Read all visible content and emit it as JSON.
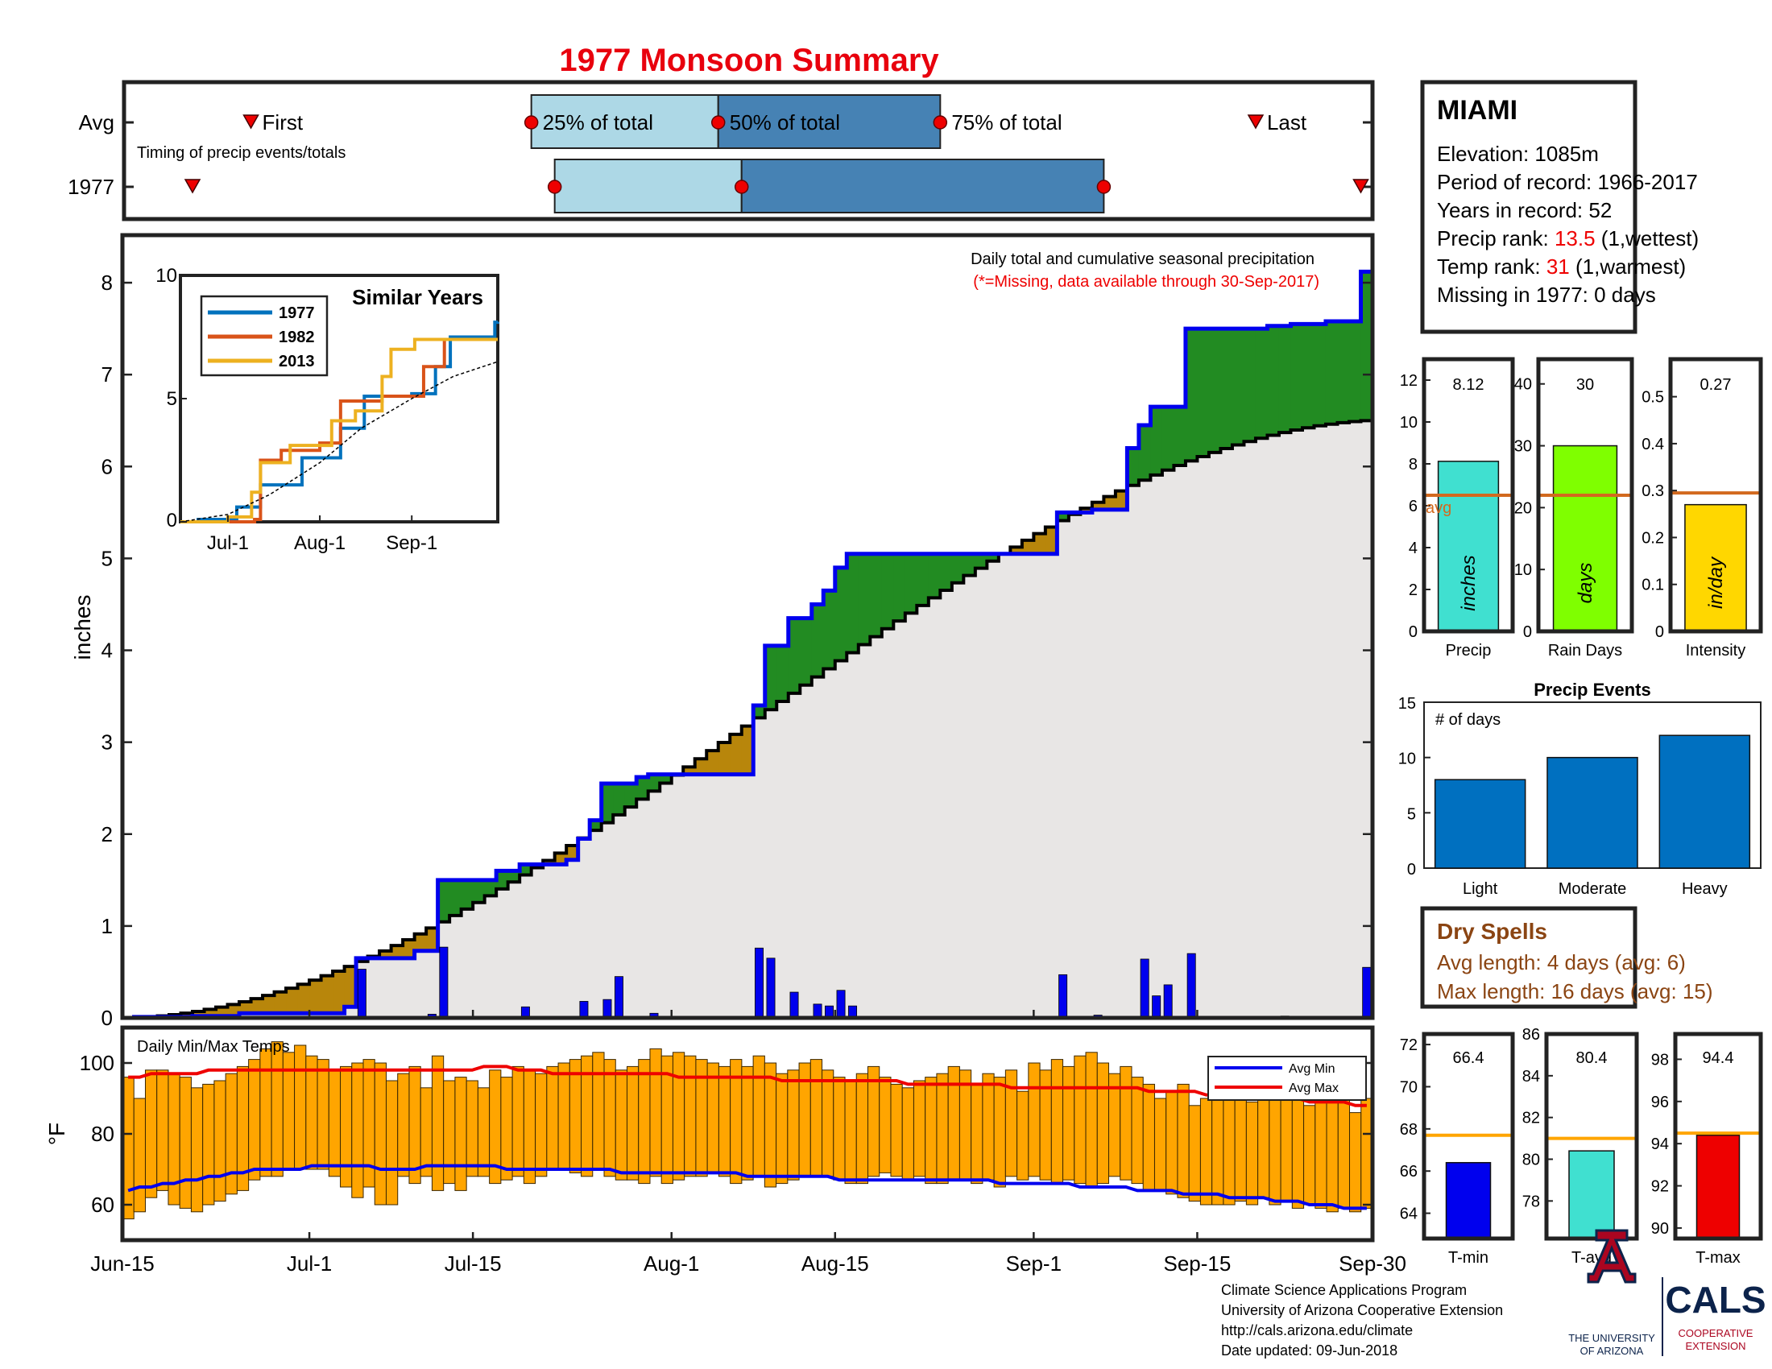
{
  "title": "1977 Monsoon Summary",
  "colors": {
    "title": "#e8000d",
    "cum_fill": "#e8e6e5",
    "above": "#228b22",
    "below": "#b8860b",
    "cum_line": "#0000ee",
    "avg_line": "#000000",
    "daily_bar": "#0000ee",
    "timing_light": "#add8e6",
    "timing_dark": "#4682b4",
    "temp_bar": "#ffa500",
    "avg_min": "#0000ee",
    "avg_max": "#ee0000",
    "precip_bar": "#40e0d0",
    "days_bar": "#7fff00",
    "intensity_bar": "#ffd700",
    "avg_ref": "#d2691e",
    "events_bar": "#0070c0",
    "dry": "#8b4513",
    "tmin_bar": "#0000ee",
    "tavg_bar": "#40e0d0",
    "tmax_bar": "#ee0000",
    "temp_ref": "#ffa500",
    "ua_red": "#ab0520",
    "ua_blue": "#0c234b"
  },
  "timing": {
    "row_labels": [
      "Avg",
      "1977"
    ],
    "subtitle": "Timing of precip events/totals",
    "avg": {
      "first": "Jun-26",
      "p25": "Jul-20",
      "p50": "Aug-5",
      "p75": "Aug-24",
      "last": "Sep-20"
    },
    "year": {
      "first": "Jun-21",
      "p25": "Jul-22",
      "p50": "Aug-7",
      "p75": "Sep-7",
      "last": "Sep-29"
    },
    "labels": {
      "first": "First",
      "p25": "25% of total",
      "p50": "50% of total",
      "p75": "75% of total",
      "last": "Last"
    }
  },
  "chart_data": [
    {
      "type": "area",
      "title": "Daily total and cumulative seasonal precipitation",
      "note": "(*=Missing, data available through 30-Sep-2017)",
      "ylabel": "inches",
      "ylim": [
        0,
        8.5
      ],
      "yticks": [
        0,
        1,
        2,
        3,
        4,
        5,
        6,
        7,
        8
      ],
      "xlim": [
        "Jun-15",
        "Sep-30"
      ],
      "xtick_labels": [
        "Jun-15",
        "Jul-1",
        "Jul-15",
        "Aug-1",
        "Aug-15",
        "Sep-1",
        "Sep-15",
        "Sep-30"
      ],
      "cumulative_1977": [
        [
          "Jun-16",
          0.01
        ],
        [
          "Jun-21",
          0.02
        ],
        [
          "Jun-25",
          0.05
        ],
        [
          "Jul-4",
          0.12
        ],
        [
          "Jul-5",
          0.65
        ],
        [
          "Jul-10",
          0.73
        ],
        [
          "Jul-12",
          1.5
        ],
        [
          "Jul-17",
          1.6
        ],
        [
          "Jul-19",
          1.67
        ],
        [
          "Jul-23",
          1.72
        ],
        [
          "Jul-24",
          1.95
        ],
        [
          "Jul-25",
          2.15
        ],
        [
          "Jul-26",
          2.55
        ],
        [
          "Jul-29",
          2.62
        ],
        [
          "Jul-30",
          2.65
        ],
        [
          "Aug-8",
          3.4
        ],
        [
          "Aug-9",
          4.05
        ],
        [
          "Aug-11",
          4.35
        ],
        [
          "Aug-13",
          4.5
        ],
        [
          "Aug-14",
          4.65
        ],
        [
          "Aug-15",
          4.9
        ],
        [
          "Aug-16",
          5.05
        ],
        [
          "Sep-3",
          5.5
        ],
        [
          "Sep-6",
          5.53
        ],
        [
          "Sep-9",
          6.2
        ],
        [
          "Sep-10",
          6.45
        ],
        [
          "Sep-11",
          6.65
        ],
        [
          "Sep-14",
          7.5
        ],
        [
          "Sep-21",
          7.53
        ],
        [
          "Sep-23",
          7.55
        ],
        [
          "Sep-26",
          7.58
        ],
        [
          "Sep-29",
          8.12
        ]
      ],
      "cumulative_avg_end": 6.5,
      "daily_1977": [
        [
          "Jul-5",
          0.53
        ],
        [
          "Jul-11",
          0.04
        ],
        [
          "Jul-12",
          0.77
        ],
        [
          "Jul-19",
          0.12
        ],
        [
          "Jul-24",
          0.18
        ],
        [
          "Jul-26",
          0.2
        ],
        [
          "Jul-27",
          0.45
        ],
        [
          "Jul-30",
          0.05
        ],
        [
          "Aug-8",
          0.76
        ],
        [
          "Aug-9",
          0.65
        ],
        [
          "Aug-11",
          0.28
        ],
        [
          "Aug-13",
          0.15
        ],
        [
          "Aug-14",
          0.13
        ],
        [
          "Aug-15",
          0.3
        ],
        [
          "Aug-16",
          0.13
        ],
        [
          "Sep-3",
          0.47
        ],
        [
          "Sep-6",
          0.03
        ],
        [
          "Sep-10",
          0.64
        ],
        [
          "Sep-11",
          0.24
        ],
        [
          "Sep-12",
          0.36
        ],
        [
          "Sep-14",
          0.7
        ],
        [
          "Sep-22",
          0.02
        ],
        [
          "Sep-29",
          0.55
        ]
      ]
    },
    {
      "type": "line",
      "title": "Similar Years",
      "ylim": [
        0,
        10
      ],
      "yticks": [
        0,
        5,
        10
      ],
      "xtick_labels": [
        "Jul-1",
        "Aug-1",
        "Sep-1"
      ],
      "series": [
        {
          "name": "1977",
          "color": "#0072bd",
          "points": [
            [
              "Jun-15",
              0
            ],
            [
              "Jun-21",
              0.1
            ],
            [
              "Jul-4",
              0.6
            ],
            [
              "Jul-12",
              1.5
            ],
            [
              "Jul-26",
              2.6
            ],
            [
              "Aug-8",
              3.8
            ],
            [
              "Aug-16",
              5.1
            ],
            [
              "Sep-1",
              5.2
            ],
            [
              "Sep-9",
              6.3
            ],
            [
              "Sep-14",
              7.5
            ],
            [
              "Sep-29",
              8.1
            ],
            [
              "Sep-30",
              8.12
            ]
          ]
        },
        {
          "name": "1982",
          "color": "#d95319",
          "points": [
            [
              "Jun-15",
              0
            ],
            [
              "Jul-10",
              0.1
            ],
            [
              "Jul-12",
              2.5
            ],
            [
              "Jul-19",
              2.9
            ],
            [
              "Aug-1",
              3.2
            ],
            [
              "Aug-8",
              4.9
            ],
            [
              "Aug-22",
              5.1
            ],
            [
              "Sep-5",
              6.3
            ],
            [
              "Sep-12",
              7.4
            ],
            [
              "Sep-30",
              7.4
            ]
          ]
        },
        {
          "name": "2013",
          "color": "#edb120",
          "points": [
            [
              "Jun-15",
              0
            ],
            [
              "Jul-1",
              0.2
            ],
            [
              "Jul-9",
              1.2
            ],
            [
              "Jul-12",
              2.4
            ],
            [
              "Jul-22",
              3.1
            ],
            [
              "Aug-5",
              4.1
            ],
            [
              "Aug-13",
              4.5
            ],
            [
              "Aug-22",
              5.9
            ],
            [
              "Aug-25",
              7.0
            ],
            [
              "Sep-2",
              7.4
            ],
            [
              "Sep-30",
              7.4
            ]
          ]
        },
        {
          "name": "avg",
          "color": "#000000",
          "points": [
            [
              "Jun-15",
              0
            ],
            [
              "Jul-1",
              0.3
            ],
            [
              "Jul-15",
              1.1
            ],
            [
              "Aug-1",
              2.4
            ],
            [
              "Aug-15",
              3.8
            ],
            [
              "Sep-1",
              5.0
            ],
            [
              "Sep-15",
              5.9
            ],
            [
              "Sep-30",
              6.5
            ]
          ]
        }
      ]
    },
    {
      "type": "bar",
      "title": "Daily Min/Max Temps",
      "ylabel": "°F",
      "ylim": [
        50,
        110
      ],
      "yticks": [
        60,
        80,
        100
      ],
      "legend": [
        "Avg Min",
        "Avg Max"
      ],
      "tmax": [
        96,
        90,
        98,
        98,
        97,
        96,
        93,
        94,
        95,
        97,
        99,
        101,
        104,
        106,
        103,
        105,
        102,
        101,
        98,
        99,
        100,
        101,
        100,
        95,
        97,
        99,
        93,
        102,
        95,
        96,
        95,
        93,
        98,
        96,
        99,
        98,
        97,
        99,
        100,
        101,
        102,
        103,
        101,
        98,
        99,
        101,
        104,
        102,
        103,
        102,
        101,
        100,
        99,
        101,
        99,
        102,
        100,
        97,
        98,
        100,
        101,
        98,
        96,
        95,
        97,
        99,
        96,
        94,
        93,
        95,
        96,
        97,
        99,
        98,
        94,
        97,
        96,
        98,
        92,
        100,
        98,
        101,
        99,
        102,
        103,
        100,
        97,
        99,
        96,
        94,
        90,
        92,
        94,
        88,
        90,
        92,
        91,
        93,
        89,
        90,
        91,
        93,
        90,
        88,
        90,
        91,
        92,
        86,
        90
      ],
      "tmin": [
        56,
        58,
        62,
        64,
        60,
        59,
        58,
        60,
        61,
        63,
        64,
        67,
        68,
        68,
        70,
        70,
        70,
        70,
        68,
        65,
        62,
        65,
        60,
        60,
        68,
        66,
        68,
        64,
        66,
        64,
        68,
        68,
        66,
        67,
        68,
        66,
        68,
        70,
        70,
        69,
        68,
        70,
        68,
        67,
        67,
        66,
        68,
        66,
        67,
        68,
        68,
        69,
        68,
        66,
        67,
        68,
        65,
        66,
        67,
        68,
        68,
        68,
        67,
        66,
        66,
        68,
        69,
        68,
        67,
        68,
        66,
        66,
        67,
        67,
        66,
        67,
        65,
        68,
        67,
        68,
        67,
        66,
        67,
        66,
        65,
        66,
        68,
        67,
        66,
        64,
        64,
        63,
        62,
        61,
        60,
        60,
        60,
        61,
        60,
        62,
        60,
        61,
        59,
        60,
        59,
        58,
        59,
        58,
        59
      ],
      "avg_min": [
        64,
        65,
        65,
        66,
        66,
        67,
        67,
        68,
        68,
        69,
        69,
        70,
        70,
        70,
        70,
        70,
        71,
        71,
        71,
        71,
        71,
        71,
        70,
        70,
        70,
        70,
        71,
        71,
        71,
        71,
        71,
        71,
        71,
        70,
        70,
        70,
        70,
        70,
        70,
        70,
        70,
        70,
        70,
        69,
        69,
        69,
        69,
        69,
        69,
        69,
        69,
        69,
        69,
        69,
        68,
        68,
        68,
        68,
        68,
        68,
        68,
        68,
        67,
        67,
        67,
        67,
        67,
        67,
        67,
        67,
        67,
        67,
        67,
        67,
        67,
        67,
        66,
        66,
        66,
        66,
        66,
        66,
        66,
        65,
        65,
        65,
        65,
        65,
        64,
        64,
        64,
        64,
        63,
        63,
        63,
        63,
        62,
        62,
        62,
        62,
        61,
        61,
        61,
        60,
        60,
        60,
        59,
        59,
        59
      ],
      "avg_max": [
        96,
        96,
        97,
        97,
        97,
        97,
        97,
        98,
        98,
        98,
        98,
        98,
        98,
        98,
        98,
        98,
        98,
        98,
        98,
        98,
        98,
        98,
        98,
        98,
        98,
        98,
        98,
        98,
        98,
        98,
        98,
        99,
        99,
        99,
        98,
        98,
        98,
        97,
        97,
        97,
        97,
        97,
        97,
        97,
        97,
        97,
        97,
        97,
        96,
        96,
        96,
        96,
        96,
        96,
        96,
        96,
        96,
        95,
        95,
        95,
        95,
        95,
        95,
        95,
        95,
        95,
        95,
        95,
        94,
        94,
        94,
        94,
        94,
        94,
        94,
        94,
        94,
        93,
        93,
        93,
        93,
        93,
        93,
        93,
        93,
        93,
        93,
        93,
        93,
        92,
        92,
        92,
        92,
        92,
        91,
        91,
        91,
        91,
        90,
        90,
        90,
        90,
        90,
        89,
        89,
        89,
        89,
        88,
        88
      ]
    },
    {
      "type": "bar",
      "title": "Precip",
      "unit": "inches",
      "value": 8.12,
      "avg": 6.5,
      "ylim": [
        0,
        13
      ],
      "yticks": [
        0,
        2,
        4,
        6,
        8,
        10,
        12
      ],
      "avg_label": "avg"
    },
    {
      "type": "bar",
      "title": "Rain Days",
      "unit": "days",
      "value": 30,
      "avg": 22,
      "ylim": [
        0,
        44
      ],
      "yticks": [
        0,
        10,
        20,
        30,
        40
      ]
    },
    {
      "type": "bar",
      "title": "Intensity",
      "unit": "in/day",
      "value": 0.27,
      "avg": 0.295,
      "ylim": [
        0,
        0.58
      ],
      "yticks": [
        0,
        0.1,
        0.2,
        0.3,
        0.4,
        0.5
      ]
    },
    {
      "type": "bar",
      "title": "Precip Events",
      "ylabel": "# of days",
      "categories": [
        "Light",
        "Moderate",
        "Heavy"
      ],
      "values": [
        8,
        10,
        12
      ],
      "ylim": [
        0,
        15
      ],
      "yticks": [
        0,
        5,
        10,
        15
      ]
    },
    {
      "type": "bar",
      "title": "T-min",
      "value": 66.4,
      "avg": 67.7,
      "ylim": [
        62.8,
        72.5
      ],
      "yticks": [
        64,
        66,
        68,
        70,
        72
      ]
    },
    {
      "type": "bar",
      "title": "T-avg",
      "value": 80.4,
      "avg": 81.0,
      "ylim": [
        76.2,
        86
      ],
      "yticks": [
        78,
        80,
        82,
        84,
        86
      ]
    },
    {
      "type": "bar",
      "title": "T-max",
      "value": 94.4,
      "avg": 94.5,
      "ylim": [
        89.5,
        99.2
      ],
      "yticks": [
        90,
        92,
        94,
        96,
        98
      ]
    }
  ],
  "station": {
    "name": "MIAMI",
    "lines": [
      {
        "label": "Elevation: ",
        "value": "1085m"
      },
      {
        "label": "Period of record: ",
        "value": "1966-2017"
      },
      {
        "label": "Years in record: ",
        "value": "52"
      },
      {
        "label": "Precip rank: ",
        "value": "13.5",
        "suffix": " (1,wettest)",
        "highlight": true
      },
      {
        "label": "Temp rank: ",
        "value": "31",
        "suffix": " (1,warmest)",
        "highlight": true
      },
      {
        "label": "Missing in 1977: ",
        "value": "0 days"
      }
    ]
  },
  "dry_spells": {
    "title": "Dry Spells",
    "avg_length": "Avg length: 4 days (avg: 6)",
    "max_length": "Max length: 16 days (avg: 15)"
  },
  "footer": {
    "lines": [
      "Climate Science Applications Program",
      "University of Arizona Cooperative Extension",
      "http://cals.arizona.edu/climate",
      " Date updated: 09-Jun-2018"
    ]
  },
  "logos": {
    "ua_text1": "THE UNIVERSITY",
    "ua_text2": "OF ARIZONA",
    "cals": "CALS",
    "cals_sub1": "COOPERATIVE",
    "cals_sub2": "EXTENSION"
  }
}
